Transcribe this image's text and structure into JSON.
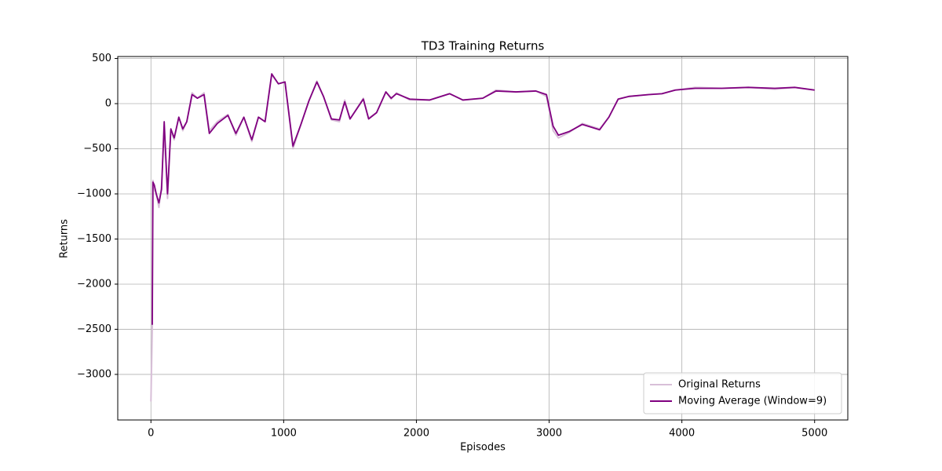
{
  "chart_data": {
    "type": "line",
    "title": "TD3 Training Returns",
    "x_label": "Episodes",
    "y_label": "Returns",
    "x": [
      0,
      10,
      15,
      25,
      40,
      60,
      80,
      100,
      125,
      150,
      175,
      210,
      240,
      270,
      310,
      350,
      400,
      440,
      500,
      580,
      640,
      700,
      760,
      810,
      860,
      910,
      960,
      1010,
      1070,
      1130,
      1190,
      1250,
      1300,
      1360,
      1420,
      1460,
      1500,
      1600,
      1640,
      1700,
      1770,
      1810,
      1850,
      1950,
      2100,
      2250,
      2350,
      2500,
      2600,
      2750,
      2900,
      2980,
      3030,
      3070,
      3150,
      3250,
      3380,
      3450,
      3520,
      3600,
      3750,
      3850,
      3950,
      4100,
      4300,
      4500,
      4700,
      4850,
      5000
    ],
    "series": [
      {
        "name": "Original Returns",
        "color": "#d8bfd8",
        "values": [
          -3300,
          -2500,
          -850,
          -950,
          -1000,
          -1150,
          -900,
          -300,
          -1050,
          -300,
          -400,
          -150,
          -300,
          -200,
          120,
          60,
          120,
          -300,
          -200,
          -120,
          -350,
          -150,
          -420,
          -150,
          -200,
          320,
          220,
          240,
          -500,
          -230,
          30,
          250,
          80,
          -180,
          -200,
          40,
          -170,
          60,
          -160,
          -100,
          130,
          50,
          120,
          40,
          40,
          110,
          40,
          60,
          150,
          130,
          140,
          80,
          -300,
          -380,
          -320,
          -220,
          -280,
          -150,
          50,
          80,
          100,
          110,
          150,
          180,
          170,
          180,
          160,
          180,
          150
        ]
      },
      {
        "name": "Moving Average (Window=9)",
        "color": "#800080",
        "values": [
          null,
          -2450,
          -870,
          -900,
          -1000,
          -1100,
          -950,
          -200,
          -1000,
          -280,
          -380,
          -150,
          -280,
          -200,
          100,
          60,
          100,
          -330,
          -220,
          -130,
          -330,
          -150,
          -400,
          -150,
          -200,
          330,
          220,
          240,
          -470,
          -230,
          30,
          240,
          80,
          -170,
          -180,
          20,
          -170,
          50,
          -170,
          -100,
          130,
          60,
          110,
          50,
          40,
          110,
          40,
          60,
          140,
          130,
          140,
          100,
          -250,
          -350,
          -310,
          -230,
          -290,
          -150,
          50,
          80,
          100,
          110,
          150,
          170,
          170,
          180,
          170,
          180,
          150
        ]
      }
    ],
    "xlim": [
      -250,
      5250
    ],
    "ylim": [
      -3505,
      522
    ],
    "xticks": [
      0,
      1000,
      2000,
      3000,
      4000,
      5000
    ],
    "yticks": [
      500,
      0,
      {
        "value": -500,
        "label": "−500"
      },
      {
        "value": -1000,
        "label": "−1000"
      },
      {
        "value": -1500,
        "label": "−1500"
      },
      {
        "value": -2000,
        "label": "−2000"
      },
      {
        "value": -2500,
        "label": "−2500"
      },
      {
        "value": -3000,
        "label": "−3000"
      }
    ],
    "grid": true,
    "legend": "lower right"
  }
}
